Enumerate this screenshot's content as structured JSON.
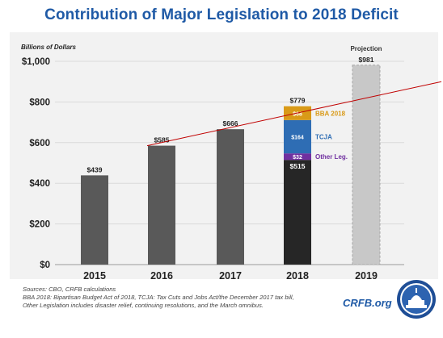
{
  "chart_data": {
    "type": "bar",
    "title": "Contribution of Major Legislation to 2018 Deficit",
    "ylabel": "Billions of Dollars",
    "ylim": [
      0,
      1000
    ],
    "yticks": [
      0,
      200,
      400,
      600,
      800,
      1000
    ],
    "ytick_labels": [
      "$0",
      "$200",
      "$400",
      "$600",
      "$800",
      "$1,000"
    ],
    "categories": [
      "2015",
      "2016",
      "2017",
      "2018",
      "2019"
    ],
    "values": [
      439,
      585,
      666,
      779,
      981
    ],
    "value_labels": [
      "$439",
      "$585",
      "$666",
      "$779",
      "$981"
    ],
    "stack_2018": [
      {
        "name": "",
        "value": 515,
        "label": "$515",
        "color": "#262626"
      },
      {
        "name": "Other Leg.",
        "value": 32,
        "label": "$32",
        "color": "#7030a0"
      },
      {
        "name": "TCJA",
        "value": 164,
        "label": "$164",
        "color": "#2e6db4"
      },
      {
        "name": "BBA 2018",
        "value": 68,
        "label": "$68",
        "color": "#d99a17"
      }
    ],
    "projection_label": "Projection",
    "grid": true,
    "colors": {
      "bar": "#595959",
      "projection": "#c8c8c8",
      "trend": "#c00000",
      "grid": "#d9d9d9"
    }
  },
  "notes": {
    "line1": "Sources: CBO, CRFB calculations",
    "line2": "BBA 2018: Bipartisan Budget Act of 2018, TCJA: Tax Cuts and Jobs Act/the December 2017 tax bill,",
    "line3": "Other Legislation includes disaster relief, continuing resolutions, and the March omnibus."
  },
  "logo": {
    "text": "CRFB.org"
  }
}
